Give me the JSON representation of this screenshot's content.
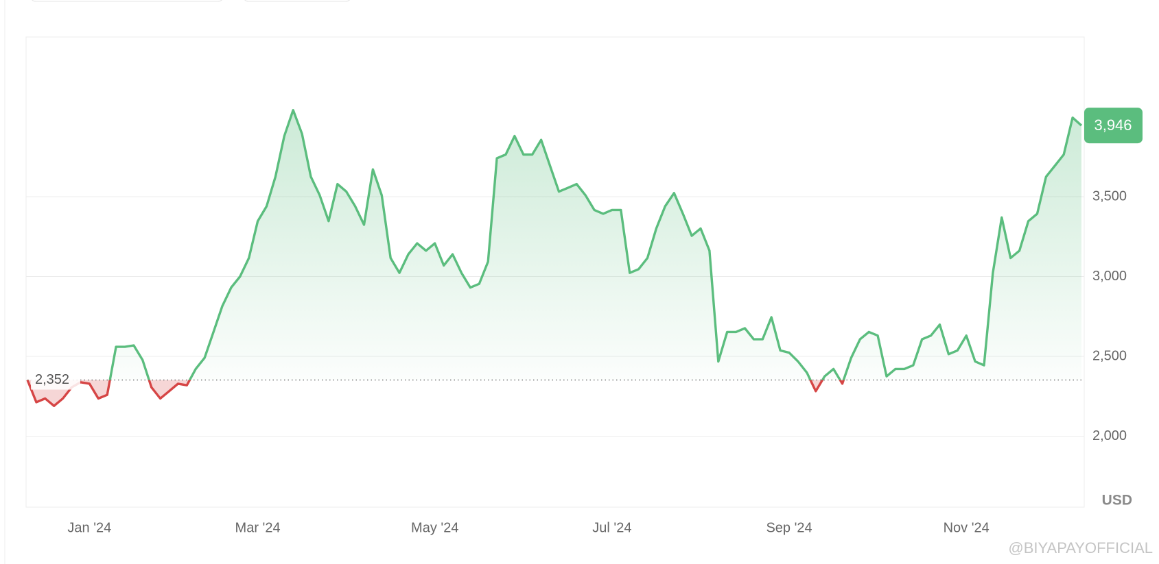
{
  "chart_data": {
    "type": "line",
    "categories": [
      null,
      null,
      null,
      null,
      null,
      null,
      null,
      "Jan '24",
      null,
      null,
      null,
      null,
      null,
      null,
      null,
      null,
      null,
      null,
      null,
      null,
      null,
      null,
      null,
      null,
      null,
      null,
      "Mar '24",
      null,
      null,
      null,
      null,
      null,
      null,
      null,
      null,
      null,
      null,
      null,
      null,
      null,
      null,
      null,
      null,
      null,
      null,
      null,
      "May '24",
      null,
      null,
      null,
      null,
      null,
      null,
      null,
      null,
      null,
      null,
      null,
      null,
      null,
      null,
      null,
      null,
      null,
      null,
      null,
      "Jul '24",
      null,
      null,
      null,
      null,
      null,
      null,
      null,
      null,
      null,
      null,
      null,
      null,
      null,
      null,
      null,
      null,
      null,
      null,
      null,
      "Sep '24",
      null,
      null,
      null,
      null,
      null,
      null,
      null,
      null,
      null,
      null,
      null,
      null,
      null,
      null,
      null,
      null,
      null,
      null,
      null,
      "Nov '24",
      null,
      null,
      null,
      null,
      null,
      null,
      null,
      null,
      null,
      null,
      null,
      null,
      null
    ],
    "values": [
      2352,
      2213,
      2236,
      2190,
      2236,
      2306,
      2338,
      2329,
      2236,
      2259,
      2560,
      2560,
      2569,
      2477,
      2306,
      2236,
      2282,
      2329,
      2319,
      2421,
      2491,
      2653,
      2815,
      2931,
      3000,
      3116,
      3347,
      3440,
      3625,
      3880,
      4042,
      3894,
      3625,
      3509,
      3347,
      3579,
      3532,
      3440,
      3324,
      3671,
      3509,
      3116,
      3023,
      3139,
      3208,
      3162,
      3208,
      3069,
      3139,
      3023,
      2931,
      2954,
      3093,
      3741,
      3764,
      3880,
      3764,
      3764,
      3856,
      3694,
      3532,
      3555,
      3579,
      3509,
      3417,
      3393,
      3417,
      3417,
      3023,
      3046,
      3116,
      3301,
      3440,
      3523,
      3393,
      3255,
      3301,
      3162,
      2468,
      2653,
      2653,
      2676,
      2607,
      2607,
      2745,
      2537,
      2523,
      2468,
      2398,
      2282,
      2375,
      2421,
      2329,
      2491,
      2607,
      2653,
      2630,
      2375,
      2421,
      2421,
      2444,
      2607,
      2630,
      2699,
      2514,
      2537,
      2630,
      2468,
      2444,
      3023,
      3370,
      3116,
      3162,
      3347,
      3393,
      3625,
      3694,
      3764,
      3995,
      3946
    ],
    "color": "#5bbd7e",
    "below_color": "#d64545",
    "reference": {
      "value": 2352,
      "label": "2,352"
    },
    "current": {
      "value": 3946,
      "label": "3,946"
    },
    "ylim": [
      1556,
      4500
    ],
    "yticks": [
      {
        "value": 2000,
        "label": "2,000"
      },
      {
        "value": 2500,
        "label": "2,500"
      },
      {
        "value": 3000,
        "label": "3,000"
      },
      {
        "value": 3500,
        "label": "3,500"
      }
    ],
    "grid": true,
    "unit_label": "USD",
    "watermark": "@BIYAPAYOFFICIAL"
  }
}
